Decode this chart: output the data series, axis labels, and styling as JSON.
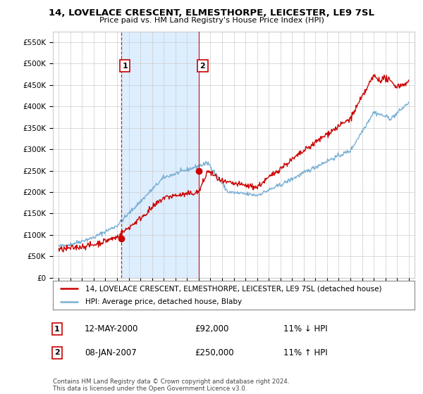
{
  "title1": "14, LOVELACE CRESCENT, ELMESTHORPE, LEICESTER, LE9 7SL",
  "title2": "Price paid vs. HM Land Registry's House Price Index (HPI)",
  "legend_line1": "14, LOVELACE CRESCENT, ELMESTHORPE, LEICESTER, LE9 7SL (detached house)",
  "legend_line2": "HPI: Average price, detached house, Blaby",
  "purchase1_label": "1",
  "purchase1_date": "12-MAY-2000",
  "purchase1_price": "£92,000",
  "purchase1_hpi": "11% ↓ HPI",
  "purchase1_year": 2000.37,
  "purchase1_value": 92000,
  "purchase2_label": "2",
  "purchase2_date": "08-JAN-2007",
  "purchase2_price": "£250,000",
  "purchase2_hpi": "11% ↑ HPI",
  "purchase2_year": 2007.03,
  "purchase2_value": 250000,
  "footer": "Contains HM Land Registry data © Crown copyright and database right 2024.\nThis data is licensed under the Open Government Licence v3.0.",
  "red_color": "#cc0000",
  "blue_color": "#7ab0d4",
  "shade_color": "#ddeeff",
  "vline_color": "#cc0000",
  "bg_color": "#ffffff",
  "grid_color": "#cccccc",
  "ylim_min": 0,
  "ylim_max": 575000,
  "xlim_min": 1994.5,
  "xlim_max": 2025.5
}
